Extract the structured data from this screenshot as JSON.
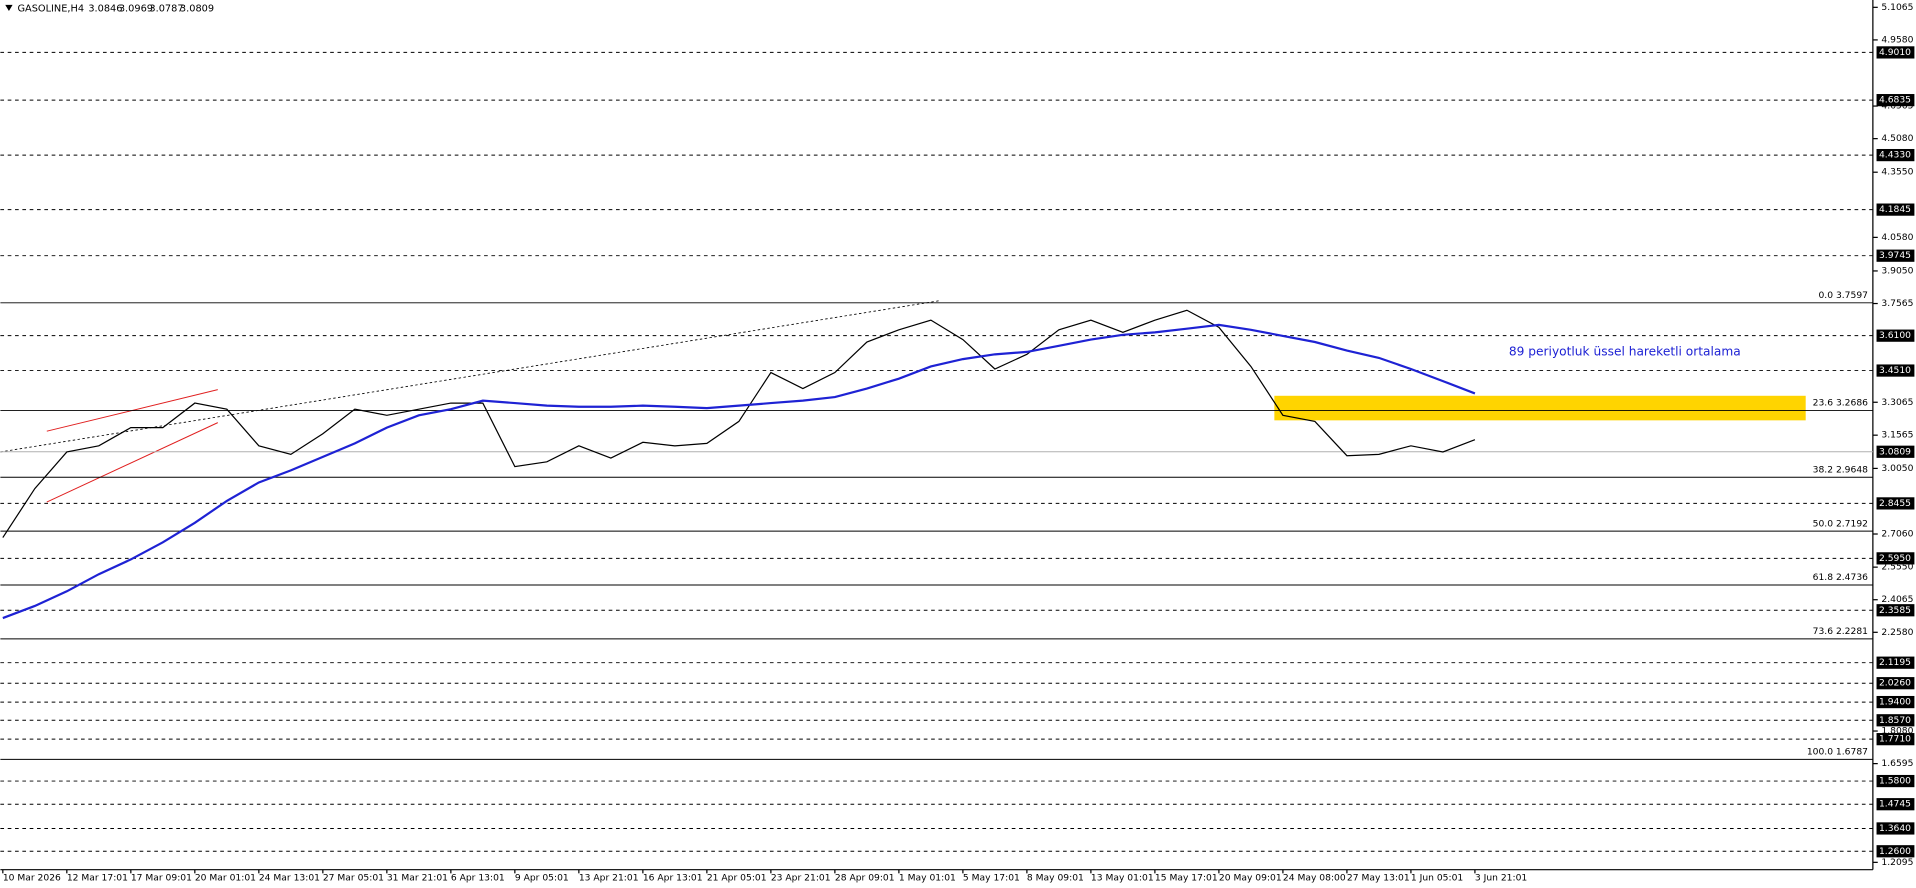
{
  "chart_data": {
    "type": "line",
    "header": {
      "symbol": "GASOLINE,H4",
      "ohlc": [
        3.0846,
        3.0969,
        3.0787,
        3.0809
      ]
    },
    "annotation": "89 periyotluk üssel hareketli ortalama",
    "categories": [
      "10 Mar 2026",
      null,
      "12 Mar 17:01",
      null,
      "17 Mar 09:01",
      null,
      "20 Mar 01:01",
      null,
      "24 Mar 13:01",
      null,
      "27 Mar 05:01",
      null,
      "31 Mar 21:01",
      null,
      "6 Apr 13:01",
      null,
      "9 Apr 05:01",
      null,
      "13 Apr 21:01",
      null,
      "16 Apr 13:01",
      null,
      "21 Apr 05:01",
      null,
      "23 Apr 21:01",
      null,
      "28 Apr 09:01",
      null,
      "1 May 01:01",
      null,
      "5 May 17:01",
      null,
      "8 May 09:01",
      null,
      "13 May 01:01",
      null,
      "15 May 17:01",
      null,
      "20 May 09:01",
      null,
      "24 May 08:00",
      null,
      "27 May 13:01",
      null,
      "1 Jun 05:01",
      null,
      "3 Jun 21:01"
    ],
    "series": [
      {
        "color": "#000000",
        "values": [
          2.69,
          2.913,
          3.08,
          3.108,
          3.191,
          3.191,
          3.303,
          3.275,
          3.108,
          3.069,
          3.163,
          3.275,
          3.247,
          3.275,
          3.303,
          3.303,
          3.013,
          3.035,
          3.108,
          3.052,
          3.124,
          3.108,
          3.119,
          3.219,
          3.442,
          3.369,
          3.442,
          3.581,
          3.637,
          3.681,
          3.592,
          3.458,
          3.525,
          3.637,
          3.681,
          3.625,
          3.681,
          3.726,
          3.648,
          3.47,
          3.247,
          3.219,
          3.063,
          3.069,
          3.108,
          3.08,
          3.136
        ]
      },
      {
        "color": "#1e22d4",
        "values": [
          2.323,
          2.378,
          2.445,
          2.523,
          2.59,
          2.668,
          2.757,
          2.857,
          2.941,
          2.996,
          3.058,
          3.119,
          3.191,
          3.247,
          3.275,
          3.314,
          3.303,
          3.291,
          3.286,
          3.286,
          3.291,
          3.286,
          3.28,
          3.291,
          3.303,
          3.314,
          3.33,
          3.369,
          3.414,
          3.47,
          3.503,
          3.525,
          3.536,
          3.564,
          3.592,
          3.614,
          3.625,
          3.642,
          3.659,
          3.637,
          3.609,
          3.581,
          3.542,
          3.509,
          3.458,
          3.403,
          3.347
        ]
      }
    ],
    "ylim": [
      1.2095,
      5.1065
    ],
    "yticks": [
      5.1065,
      {
        "value": 4.958,
        "label": "4.9580"
      },
      4.6565,
      {
        "value": 4.508,
        "label": "4.5080"
      },
      {
        "value": 4.355,
        "label": "4.3550"
      },
      {
        "value": 4.058,
        "label": "4.0580"
      },
      {
        "value": 3.905,
        "label": "3.9050"
      },
      3.7565,
      3.3065,
      3.1565,
      {
        "value": 3.005,
        "label": "3.0050"
      },
      {
        "value": 2.706,
        "label": "2.7060"
      },
      {
        "value": 2.555,
        "label": "2.5550"
      },
      2.4065,
      {
        "value": 2.258,
        "label": "2.2580"
      },
      {
        "value": 1.808,
        "label": "1.8080"
      },
      1.6595,
      1.2095
    ],
    "levels": [
      {
        "value": 4.901,
        "label": "4.9010"
      },
      4.6835,
      {
        "value": 4.433,
        "label": "4.4330"
      },
      4.1845,
      3.9745,
      {
        "value": 3.61,
        "label": "3.6100"
      },
      {
        "value": 3.451,
        "label": "3.4510"
      },
      2.8455,
      {
        "value": 2.595,
        "label": "2.5950"
      },
      2.3585,
      2.1195,
      {
        "value": 2.026,
        "label": "2.0260"
      },
      {
        "value": 1.94,
        "label": "1.9400"
      },
      {
        "value": 1.857,
        "label": "1.8570"
      },
      {
        "value": 1.771,
        "label": "1.7710"
      },
      {
        "value": 1.58,
        "label": "1.5800"
      },
      1.4745,
      {
        "value": 1.364,
        "label": "1.3640"
      },
      {
        "value": 1.26,
        "label": "1.2600"
      }
    ],
    "current_price": 3.0809,
    "fibonacci": [
      {
        "value": 3.7597,
        "label": "0.0 3.7597"
      },
      {
        "value": 3.2686,
        "label": "23.6 3.2686"
      },
      {
        "value": 2.9648,
        "label": "38.2 2.9648"
      },
      {
        "value": 2.7192,
        "label": "50.0 2.7192"
      },
      {
        "value": 2.4736,
        "label": "61.8 2.4736"
      },
      {
        "value": 2.2281,
        "label": "73.6 2.2281"
      },
      {
        "value": 1.6787,
        "label": "100.0 1.6787"
      }
    ],
    "zone": [
      3.224,
      3.336
    ]
  }
}
